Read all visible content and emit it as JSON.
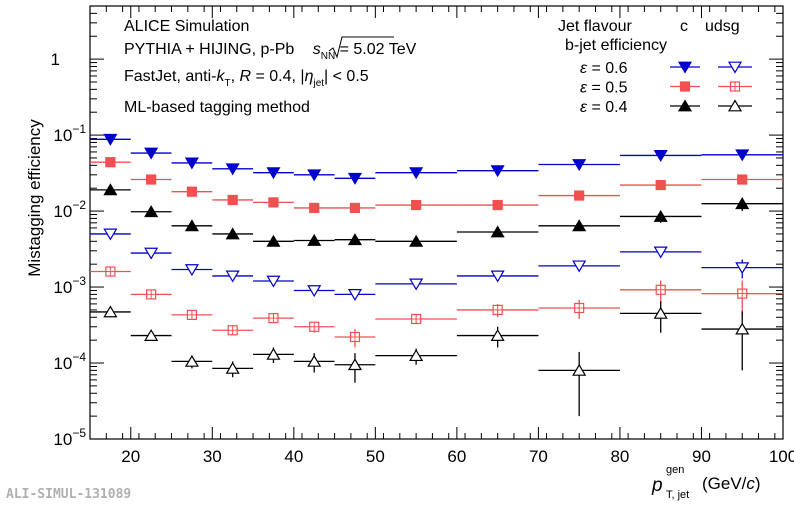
{
  "chart_data": {
    "type": "scatter",
    "ylabel": "Mistagging efficiency",
    "xlabel_main": "p",
    "xlabel_sup": "gen",
    "xlabel_sub": "T, jet",
    "xlabel_unit_pre": "(GeV/",
    "xlabel_unit_c": "c",
    "xlabel_unit_post": ")",
    "xlim": [
      15,
      100
    ],
    "ylim": [
      1e-05,
      5
    ],
    "yscale": "log",
    "xticks": [
      20,
      30,
      40,
      50,
      60,
      70,
      80,
      90,
      100
    ],
    "yticks": [
      {
        "base": "10",
        "exp": "−5",
        "value": 1e-05
      },
      {
        "base": "10",
        "exp": "−4",
        "value": 0.0001
      },
      {
        "base": "10",
        "exp": "−3",
        "value": 0.001
      },
      {
        "base": "10",
        "exp": "−2",
        "value": 0.01
      },
      {
        "base": "10",
        "exp": "−1",
        "value": 0.1
      },
      {
        "base": "1",
        "exp": "",
        "value": 1
      }
    ],
    "annotations": {
      "line1": "ALICE Simulation",
      "line2_pre": "PYTHIA + HIJING, p-Pb ",
      "line2_s": "s",
      "line2_s_sub": "NN",
      "line2_post": " = 5.02 TeV",
      "line3_pre": "FastJet, anti-",
      "line3_k": "k",
      "line3_k_sub": "T",
      "line3_mid": ", ",
      "line3_R": "R",
      "line3_post1": " = 0.4, |",
      "line3_eta": "η",
      "line3_eta_sub": "jet",
      "line3_post2": "| < 0.5",
      "line4": "ML-based tagging method"
    },
    "legend": {
      "header1": "Jet flavour",
      "col_c": "c",
      "col_udsg": "udsg",
      "header2": "b-jet efficiency",
      "rows": [
        {
          "label": "ε = 0.6",
          "color": "#0000cc",
          "c_marker": "tri-down-filled",
          "udsg_marker": "tri-down-open"
        },
        {
          "label": "ε = 0.5",
          "color": "#f05050",
          "c_marker": "square-filled",
          "udsg_marker": "square-open"
        },
        {
          "label": "ε = 0.4",
          "color": "#000000",
          "c_marker": "tri-up-filled",
          "udsg_marker": "tri-up-open"
        }
      ]
    },
    "bins": [
      [
        15,
        20
      ],
      [
        20,
        25
      ],
      [
        25,
        30
      ],
      [
        30,
        35
      ],
      [
        35,
        40
      ],
      [
        40,
        45
      ],
      [
        45,
        50
      ],
      [
        50,
        60
      ],
      [
        60,
        70
      ],
      [
        70,
        80
      ],
      [
        80,
        90
      ],
      [
        90,
        100
      ]
    ],
    "series": [
      {
        "flavour": "c",
        "eff": "0.6",
        "color": "#0000cc",
        "marker": "tri-down-filled",
        "values": [
          0.088,
          0.058,
          0.043,
          0.036,
          0.032,
          0.03,
          0.027,
          0.032,
          0.034,
          0.041,
          0.054,
          0.055
        ],
        "err_lo": [
          0,
          0,
          0,
          0,
          0,
          0,
          0,
          0,
          0,
          0,
          0,
          0
        ],
        "err_hi": [
          0,
          0,
          0,
          0,
          0,
          0,
          0,
          0,
          0,
          0,
          0,
          0
        ]
      },
      {
        "flavour": "c",
        "eff": "0.5",
        "color": "#f05050",
        "marker": "square-filled",
        "values": [
          0.044,
          0.026,
          0.018,
          0.014,
          0.013,
          0.011,
          0.011,
          0.012,
          0.012,
          0.016,
          0.022,
          0.026
        ],
        "err_lo": [
          0,
          0,
          0,
          0,
          0,
          0,
          0,
          0,
          0,
          0,
          0,
          0
        ],
        "err_hi": [
          0,
          0,
          0,
          0,
          0,
          0,
          0,
          0,
          0,
          0,
          0,
          0
        ]
      },
      {
        "flavour": "c",
        "eff": "0.4",
        "color": "#000000",
        "marker": "tri-up-filled",
        "values": [
          0.019,
          0.0098,
          0.0064,
          0.005,
          0.004,
          0.0041,
          0.0042,
          0.004,
          0.0053,
          0.0064,
          0.0085,
          0.0125
        ],
        "err_lo": [
          0,
          0,
          0,
          0,
          0,
          0,
          0,
          0,
          0,
          0,
          0.0015,
          0.0025
        ],
        "err_hi": [
          0,
          0,
          0,
          0,
          0,
          0,
          0,
          0,
          0,
          0,
          0.0015,
          0.0025
        ]
      },
      {
        "flavour": "udsg",
        "eff": "0.6",
        "color": "#0000cc",
        "marker": "tri-down-open",
        "values": [
          0.005,
          0.0028,
          0.0017,
          0.0014,
          0.0012,
          0.0009,
          0.0008,
          0.0011,
          0.0014,
          0.0019,
          0.0029,
          0.0018
        ],
        "err_lo": [
          0,
          0,
          0,
          0,
          0,
          0,
          0,
          0,
          0,
          0,
          0.0002,
          0.0005
        ],
        "err_hi": [
          0,
          0,
          0,
          0,
          0,
          0,
          0,
          0,
          0,
          0,
          0.0002,
          0.0005
        ]
      },
      {
        "flavour": "udsg",
        "eff": "0.5",
        "color": "#f05050",
        "marker": "square-open",
        "values": [
          0.0016,
          0.0008,
          0.00043,
          0.00027,
          0.00039,
          0.0003,
          0.00022,
          0.00038,
          0.0005,
          0.00053,
          0.00092,
          0.00082
        ],
        "err_lo": [
          0,
          0,
          0,
          0,
          0,
          5e-05,
          6e-05,
          0,
          0.0001,
          0.00015,
          0.0003,
          0.0004
        ],
        "err_hi": [
          0,
          0,
          0,
          0,
          0,
          5e-05,
          6e-05,
          0,
          0.0001,
          0.00015,
          0.0003,
          0.0004
        ]
      },
      {
        "flavour": "udsg",
        "eff": "0.4",
        "color": "#000000",
        "marker": "tri-up-open",
        "values": [
          0.00047,
          0.00023,
          0.000105,
          8.5e-05,
          0.00013,
          0.000105,
          9.5e-05,
          0.000125,
          0.00023,
          8e-05,
          0.00045,
          0.00028
        ],
        "err_lo": [
          0,
          0,
          2e-05,
          2e-05,
          3e-05,
          3e-05,
          4e-05,
          3e-05,
          7e-05,
          6e-05,
          0.0002,
          0.0002
        ],
        "err_hi": [
          0,
          0,
          2e-05,
          2e-05,
          3e-05,
          3e-05,
          4e-05,
          3e-05,
          7e-05,
          6e-05,
          0.0002,
          0.0002
        ]
      }
    ]
  },
  "watermark": "ALI-SIMUL-131089"
}
